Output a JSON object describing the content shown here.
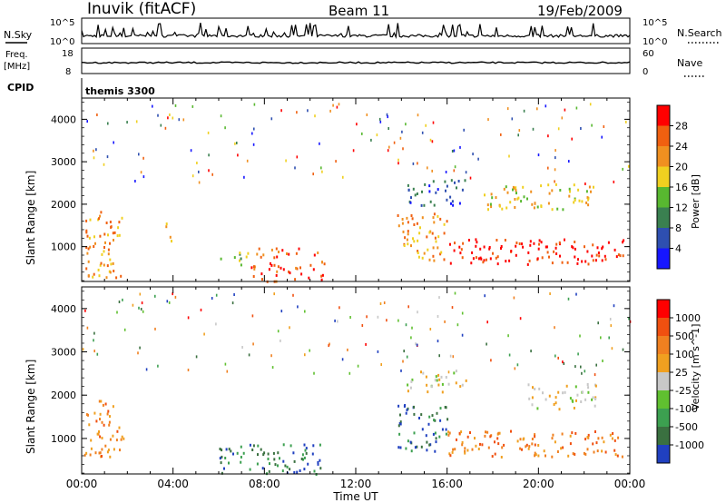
{
  "header": {
    "station": "Inuvik (fitACF)",
    "beam": "Beam 11",
    "date": "19/Feb/2009"
  },
  "strips": {
    "nsky_label": "N.Sky",
    "nsearch_label": "N.Search",
    "nsky_ticks": [
      "10^5",
      "10^0"
    ],
    "nsearch_ticks": [
      "10^5",
      "10^0"
    ],
    "freq_label": "Freq.",
    "freq_unit": "[MHz]",
    "freq_ticks": [
      "18",
      "8"
    ],
    "nave_label": "Nave",
    "nave_ticks": [
      "60",
      "0"
    ],
    "cpid_label": "CPID",
    "cpid_value": "themis 3300"
  },
  "chart_data": [
    {
      "type": "heatmap",
      "panel": "power",
      "ylabel": "Slant Range [km]",
      "xlabel": "",
      "xlim": [
        "00:00",
        "24:00"
      ],
      "ylim": [
        180,
        4500
      ],
      "x_ticks": [
        "00:00",
        "04:00",
        "08:00",
        "12:00",
        "16:00",
        "20:00",
        "00:00"
      ],
      "y_ticks": [
        1000,
        2000,
        3000,
        4000
      ],
      "colorbar": {
        "label": "Power [dB]",
        "ticks": [
          "4",
          "8",
          "12",
          "16",
          "20",
          "24",
          "28"
        ],
        "colors": [
          "#1616ff",
          "#2e4fb0",
          "#3a8050",
          "#58b830",
          "#f0d020",
          "#f09020",
          "#f06010",
          "#ff0000"
        ]
      },
      "regions": [
        {
          "t0": 0.1,
          "t1": 1.8,
          "r0": 300,
          "r1": 1900,
          "level": 5
        },
        {
          "t0": 3.6,
          "t1": 3.9,
          "r0": 1000,
          "r1": 1600,
          "level": 5
        },
        {
          "t0": 6.0,
          "t1": 7.3,
          "r0": 600,
          "r1": 900,
          "level": 3
        },
        {
          "t0": 7.4,
          "t1": 9.6,
          "r0": 180,
          "r1": 1000,
          "level": 6
        },
        {
          "t0": 9.9,
          "t1": 10.6,
          "r0": 200,
          "r1": 900,
          "level": 6
        },
        {
          "t0": 13.8,
          "t1": 16.0,
          "r0": 700,
          "r1": 1800,
          "level": 5
        },
        {
          "t0": 16.0,
          "t1": 24.0,
          "r0": 600,
          "r1": 1200,
          "level": 7
        },
        {
          "t0": 14.2,
          "t1": 16.8,
          "r0": 2000,
          "r1": 2600,
          "level": 1
        },
        {
          "t0": 17.5,
          "t1": 22.5,
          "r0": 1900,
          "r1": 2500,
          "level": 4
        }
      ]
    },
    {
      "type": "heatmap",
      "panel": "velocity",
      "ylabel": "Slant Range [km]",
      "xlabel": "Time UT",
      "xlim": [
        "00:00",
        "24:00"
      ],
      "ylim": [
        180,
        4500
      ],
      "x_ticks": [
        "00:00",
        "04:00",
        "08:00",
        "12:00",
        "16:00",
        "20:00",
        "00:00"
      ],
      "y_ticks": [
        1000,
        2000,
        3000,
        4000
      ],
      "colorbar": {
        "label": "Velocity [m s^-1]",
        "ticks": [
          "1000",
          "500",
          "100",
          "25",
          "-25",
          "-100",
          "-500",
          "-1000"
        ],
        "colors": [
          "#2040c0",
          "#3a7040",
          "#3ca050",
          "#60c030",
          "#c8c8c8",
          "#f0a020",
          "#f08020",
          "#f05010",
          "#ff0000"
        ]
      },
      "regions": [
        {
          "t0": 0.1,
          "t1": 1.8,
          "r0": 600,
          "r1": 1900,
          "level": 6
        },
        {
          "t0": 6.0,
          "t1": 10.6,
          "r0": 200,
          "r1": 900,
          "level": 1
        },
        {
          "t0": 13.8,
          "t1": 16.0,
          "r0": 700,
          "r1": 1800,
          "level": 1
        },
        {
          "t0": 16.0,
          "t1": 24.0,
          "r0": 600,
          "r1": 1200,
          "level": 6
        },
        {
          "t0": 14.2,
          "t1": 16.8,
          "r0": 2100,
          "r1": 2600,
          "level": 4
        },
        {
          "t0": 19.5,
          "t1": 22.5,
          "r0": 1700,
          "r1": 2300,
          "level": 4
        }
      ]
    }
  ],
  "time_ticks": [
    "00:00",
    "04:00",
    "08:00",
    "12:00",
    "16:00",
    "20:00",
    "00:00"
  ],
  "xlabel": "Time UT"
}
